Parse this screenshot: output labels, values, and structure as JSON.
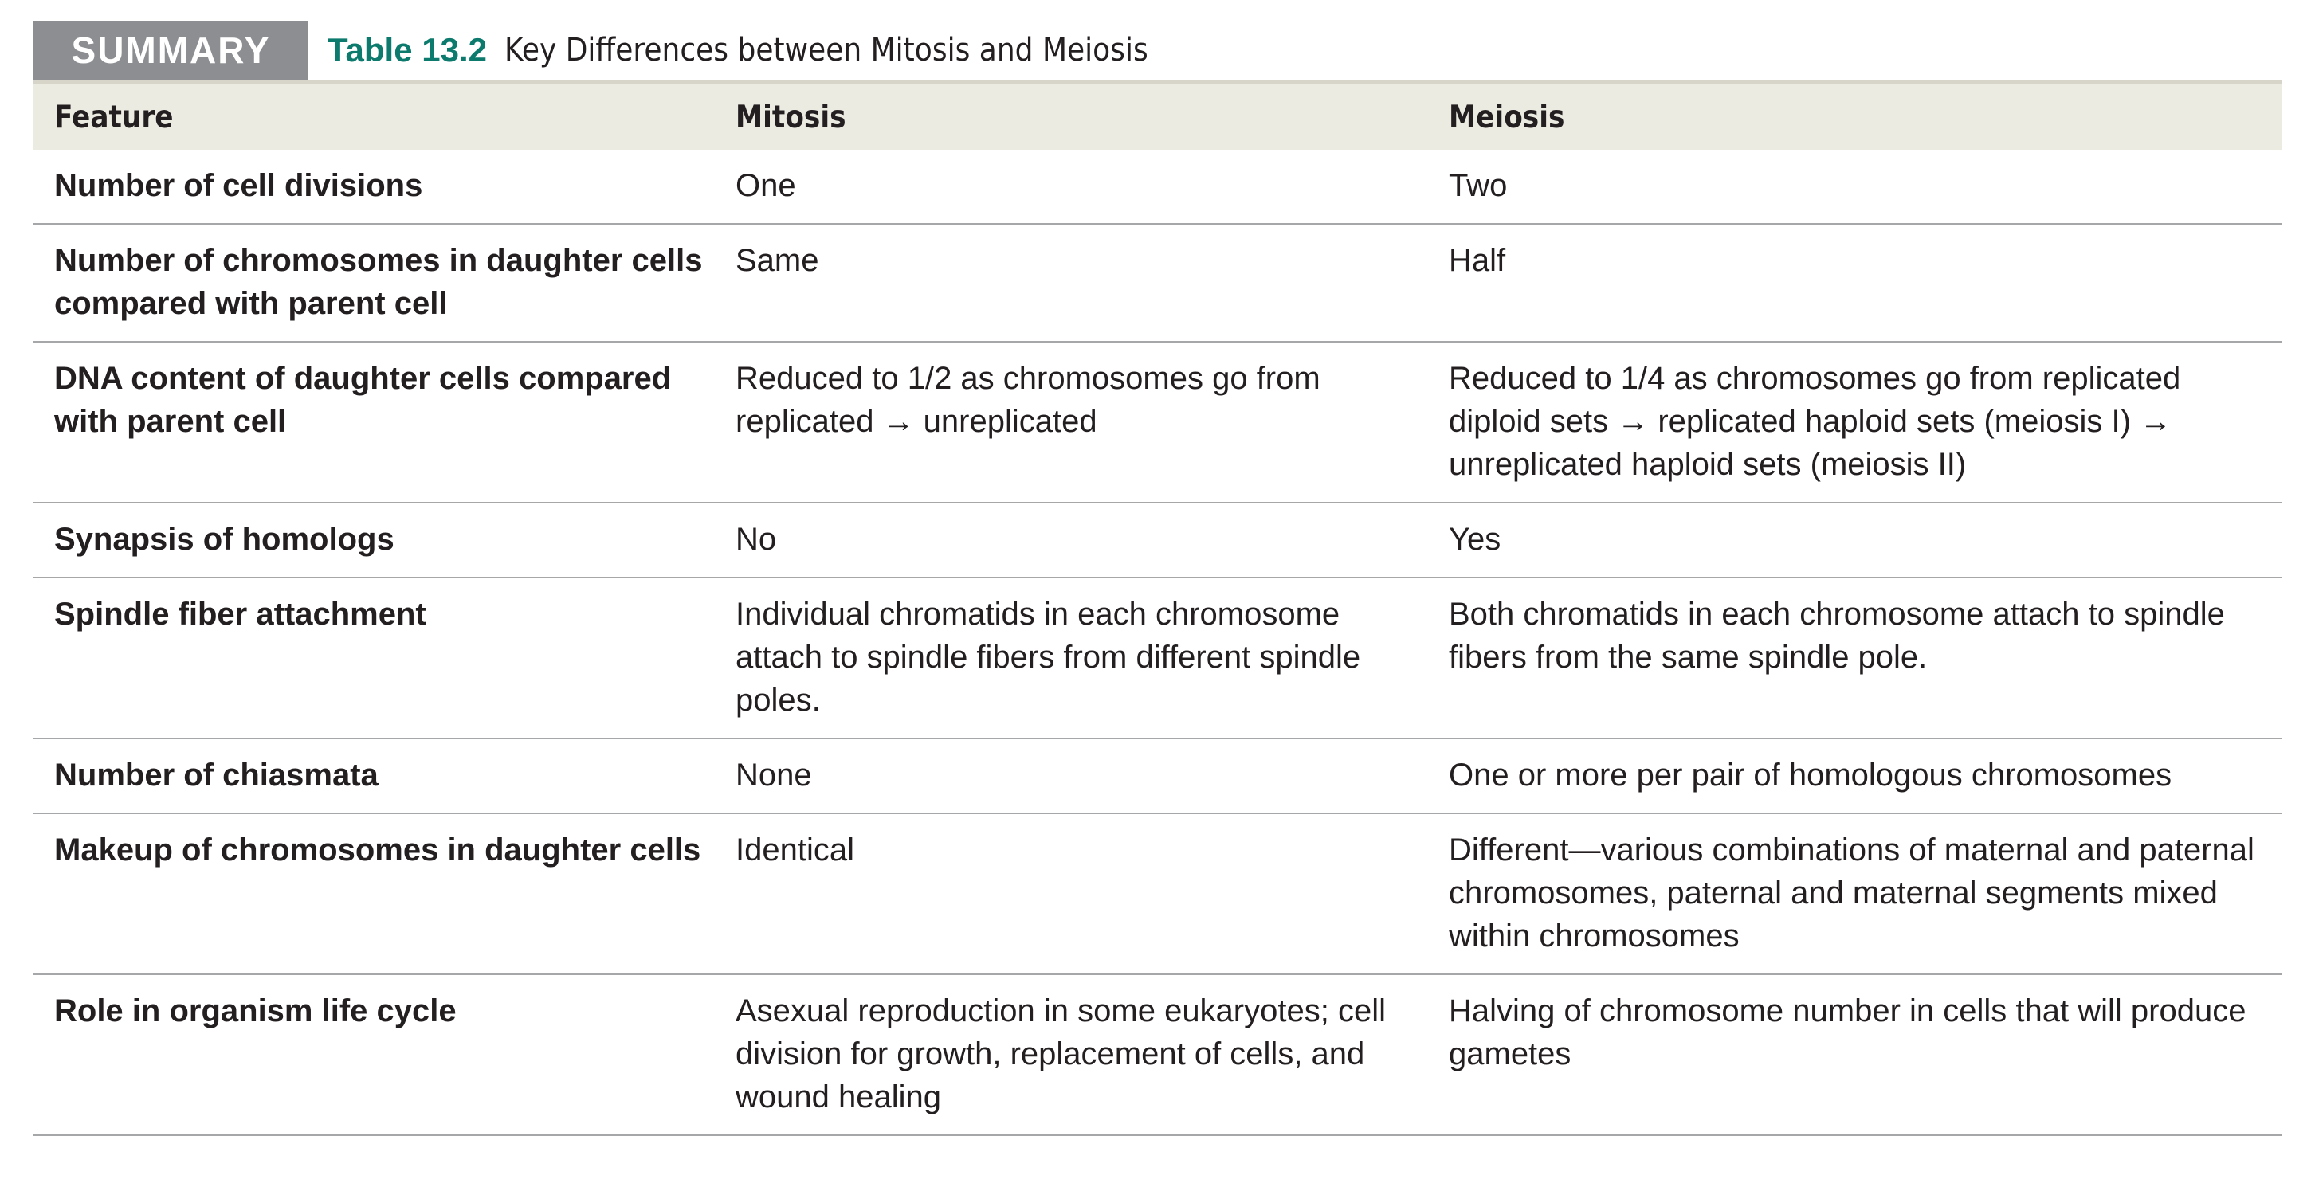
{
  "header": {
    "badge": "SUMMARY",
    "table_number": "Table 13.2",
    "table_title": "Key Differences between Mitosis and Meiosis"
  },
  "columns": [
    "Feature",
    "Mitosis",
    "Meiosis"
  ],
  "rows": [
    {
      "feature": "Number of cell divisions",
      "mitosis": "One",
      "meiosis": "Two"
    },
    {
      "feature": "Number of chromosomes in daughter cells compared with parent cell",
      "mitosis": "Same",
      "meiosis": "Half"
    },
    {
      "feature": "DNA content of daughter cells compared with parent cell",
      "mitosis": "Reduced to 1/2 as chromosomes go from replicated → unreplicated",
      "meiosis": "Reduced to 1/4 as chromosomes go from replicated diploid sets → replicated haploid sets (meiosis I) → unreplicated haploid sets (meiosis II)"
    },
    {
      "feature": "Synapsis of homologs",
      "mitosis": "No",
      "meiosis": "Yes"
    },
    {
      "feature": "Spindle fiber attachment",
      "mitosis": "Individual chromatids in each chromosome attach to spindle fibers from different spindle poles.",
      "meiosis": "Both chromatids in each chromosome attach to spindle fibers from the same spindle pole."
    },
    {
      "feature": "Number of chiasmata",
      "mitosis": "None",
      "meiosis": "One or more per pair of homologous chromosomes"
    },
    {
      "feature": "Makeup of chromosomes in daughter cells",
      "mitosis": "Identical",
      "meiosis": "Different—various combinations of maternal and paternal chromosomes, paternal and maternal segments mixed within chromosomes"
    },
    {
      "feature": "Role in organism life cycle",
      "mitosis": "Asexual reproduction in some eukaryotes; cell division for growth, replacement of cells, and wound healing",
      "meiosis": "Halving of chromosome number in cells that will produce gametes"
    }
  ]
}
